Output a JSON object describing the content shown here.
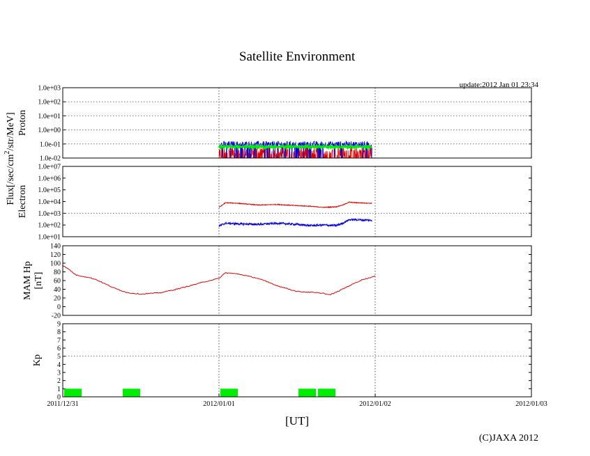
{
  "title": "Satellite Environment",
  "update_text": "update:2012 Jan 01 23:34",
  "x_axis": {
    "label": "[UT]",
    "ticks": [
      "2011/12/31",
      "2012/01/01",
      "2012/01/02",
      "2012/01/03"
    ],
    "range_hours": [
      0,
      72
    ],
    "grid_hours": [
      24,
      48
    ]
  },
  "copyright": "(C)JAXA 2012",
  "shared_ylabel": "Flux[/sec/cm2/str/MeV]",
  "colors": {
    "red": "#e00000",
    "blue": "#0000dd",
    "green": "#00ee00",
    "teal": "#00aacc"
  },
  "chart_data": [
    {
      "name": "Proton",
      "type": "line",
      "yscale": "log",
      "ylabel": "Proton",
      "ylim_exp": [
        -2,
        3
      ],
      "ytick_labels": [
        "1.0e+03",
        "1.0e+02",
        "1.0e+01",
        "1.0e+00",
        "1.0e-01",
        "1.0e-02"
      ],
      "data_span_hours": [
        24,
        47.5
      ],
      "series": [
        {
          "name": "channel-red",
          "color": "red",
          "level_exp": -1.6,
          "noise_exp": 0.45
        },
        {
          "name": "channel-blue",
          "color": "blue",
          "level_exp": -1.05,
          "noise_exp": 0.25
        },
        {
          "name": "channel-green",
          "color": "green",
          "level_exp": -1.2,
          "noise_exp": 0.06
        }
      ]
    },
    {
      "name": "Electron",
      "type": "line",
      "yscale": "log",
      "ylabel": "Electron",
      "ylim_exp": [
        1,
        7
      ],
      "ytick_labels": [
        "1.0e+07",
        "1.0e+06",
        "1.0e+05",
        "1.0e+04",
        "1.0e+03",
        "1.0e+02",
        "1.0e+01"
      ],
      "series": [
        {
          "name": "electron-high",
          "color": "red",
          "x_hours": [
            24,
            25,
            27,
            30,
            33,
            36,
            38,
            40,
            42,
            43,
            44,
            45,
            47.5
          ],
          "y_exp": [
            3.5,
            3.9,
            3.85,
            3.7,
            3.75,
            3.65,
            3.6,
            3.5,
            3.55,
            3.7,
            3.95,
            3.9,
            3.85
          ]
        },
        {
          "name": "electron-low",
          "color": "blue",
          "x_hours": [
            24,
            25,
            27,
            30,
            33,
            36,
            38,
            40,
            42,
            43,
            44,
            45,
            47.5
          ],
          "y_exp": [
            1.9,
            2.15,
            2.1,
            2.05,
            2.15,
            2.05,
            1.95,
            2.0,
            1.95,
            2.15,
            2.45,
            2.45,
            2.4
          ]
        }
      ]
    },
    {
      "name": "MAM Hp",
      "type": "line",
      "ylabel": "MAM Hp [nT]",
      "ylim": [
        -20,
        140
      ],
      "ytick_labels": [
        "140",
        "120",
        "100",
        "80",
        "60",
        "40",
        "20",
        "0",
        "-20"
      ],
      "series": [
        {
          "name": "hp",
          "color": "red",
          "x_hours": [
            0,
            1,
            2,
            3,
            4,
            5,
            6,
            8,
            10,
            12,
            15,
            18,
            22,
            24,
            25,
            27,
            30,
            33,
            36,
            38,
            40,
            41,
            42,
            44,
            46,
            48
          ],
          "y": [
            95,
            85,
            73,
            70,
            67,
            63,
            56,
            42,
            32,
            29,
            32,
            42,
            58,
            65,
            78,
            75,
            65,
            48,
            35,
            33,
            31,
            27,
            33,
            48,
            62,
            70
          ]
        }
      ]
    },
    {
      "name": "Kp",
      "type": "bar",
      "ylabel": "Kp",
      "ylim": [
        0,
        9
      ],
      "ytick_labels": [
        "9",
        "8",
        "7",
        "6",
        "5",
        "4",
        "3",
        "2",
        "1",
        "0"
      ],
      "hgrid": [
        5
      ],
      "series": [
        {
          "name": "kp",
          "color": "green",
          "bars": [
            {
              "start_hours": 0,
              "end_hours": 3,
              "value": 1
            },
            {
              "start_hours": 9,
              "end_hours": 12,
              "value": 1
            },
            {
              "start_hours": 24,
              "end_hours": 27,
              "value": 1
            },
            {
              "start_hours": 36,
              "end_hours": 39,
              "value": 1
            },
            {
              "start_hours": 39,
              "end_hours": 42,
              "value": 1
            }
          ]
        }
      ]
    }
  ]
}
